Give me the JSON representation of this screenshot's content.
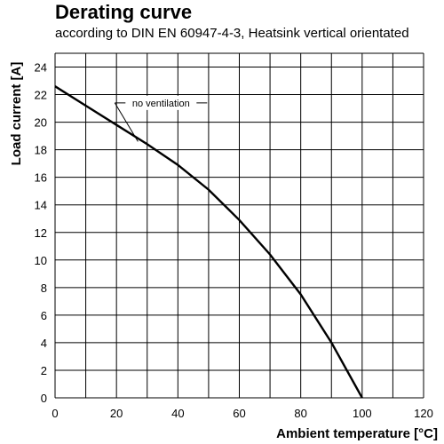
{
  "chart_data": {
    "type": "line",
    "title": "Derating curve",
    "subtitle": "according to DIN EN 60947-4-3, Heatsink vertical orientated",
    "xlabel": "Ambient temperature [°C]",
    "ylabel": "Load current [A]",
    "xlim": [
      0,
      120
    ],
    "ylim": [
      0,
      25
    ],
    "xticks": [
      0,
      20,
      40,
      60,
      80,
      100,
      120
    ],
    "yticks": [
      0,
      2,
      4,
      6,
      8,
      10,
      12,
      14,
      16,
      18,
      20,
      22,
      24
    ],
    "x_grid_step": 10,
    "y_grid_step": 2,
    "grid": true,
    "series": [
      {
        "x": [
          0,
          10,
          20,
          30,
          40,
          50,
          60,
          70,
          80,
          90,
          100
        ],
        "y": [
          22.6,
          21.2,
          19.8,
          18.4,
          16.9,
          15.1,
          12.9,
          10.4,
          7.5,
          4.0,
          0
        ]
      }
    ],
    "annotations": [
      {
        "text": "no ventilation",
        "x": 27,
        "y": 18.6,
        "label_x": 34.5,
        "label_y": 21.4
      }
    ]
  }
}
